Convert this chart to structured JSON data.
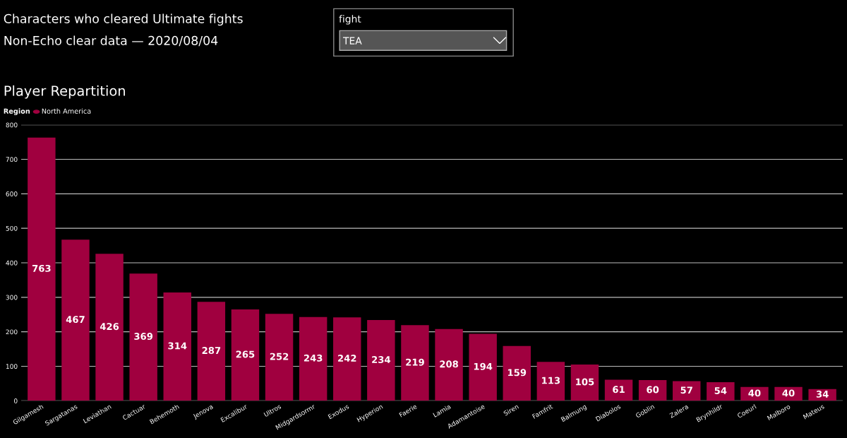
{
  "chart_data": {
    "type": "bar",
    "title": "Characters who cleared Ultimate fights",
    "subtitle": "Non-Echo clear data — 2020/08/04",
    "annotations": [
      "fight",
      "TEA",
      "Player Repartition"
    ],
    "categories": [
      "Gilgamesh",
      "Sargatanas",
      "Leviathan",
      "Cactuar",
      "Behemoth",
      "Jenova",
      "Excalibur",
      "Ultros",
      "Midgardsormr",
      "Exodus",
      "Hyperion",
      "Faerie",
      "Lamia",
      "Adamantoise",
      "Siren",
      "Famfrit",
      "Balmung",
      "Diabolos",
      "Goblin",
      "Zalera",
      "Brynhildr",
      "Coeurl",
      "Malboro",
      "Mateus"
    ],
    "series": [
      {
        "name": "North America",
        "color": "#a0003f",
        "values": [
          763,
          467,
          426,
          369,
          314,
          287,
          265,
          252,
          243,
          242,
          234,
          219,
          208,
          194,
          159,
          113,
          105,
          61,
          60,
          57,
          54,
          40,
          40,
          34
        ]
      }
    ],
    "legend_title": "Region",
    "legend": "top left",
    "ylim": [
      0,
      800
    ],
    "yticks": [
      0,
      100,
      200,
      300,
      400,
      500,
      600,
      700,
      800
    ],
    "grid": "y",
    "data_labels": true
  }
}
